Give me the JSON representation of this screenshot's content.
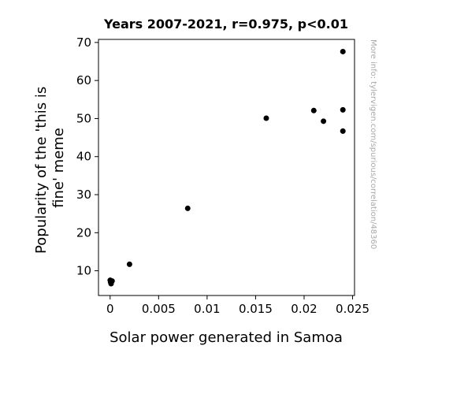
{
  "chart_data": {
    "type": "scatter",
    "title": "Years 2007-2021, r=0.975, p<0.01",
    "xlabel": "Solar power generated in Samoa",
    "ylabel_lines": [
      "Popularity of the 'this is",
      "fine' meme"
    ],
    "side_note": "More info: tylervigen.com/spurious/correlation/48360",
    "xlim": [
      -0.0012,
      0.0252
    ],
    "ylim": [
      3.5,
      70.8
    ],
    "x_ticks": [
      {
        "value": 0,
        "label": "0"
      },
      {
        "value": 0.005,
        "label": "0.005"
      },
      {
        "value": 0.01,
        "label": "0.01"
      },
      {
        "value": 0.015,
        "label": "0.015"
      },
      {
        "value": 0.02,
        "label": "0.02"
      },
      {
        "value": 0.025,
        "label": "0.025"
      }
    ],
    "y_ticks": [
      {
        "value": 10,
        "label": "10"
      },
      {
        "value": 20,
        "label": "20"
      },
      {
        "value": 30,
        "label": "30"
      },
      {
        "value": 40,
        "label": "40"
      },
      {
        "value": 50,
        "label": "50"
      },
      {
        "value": 60,
        "label": "60"
      },
      {
        "value": 70,
        "label": "70"
      }
    ],
    "points": [
      {
        "x": 1e-05,
        "y": 7.5
      },
      {
        "x": 5e-05,
        "y": 7.0
      },
      {
        "x": 0.0001,
        "y": 6.6
      },
      {
        "x": 0.0002,
        "y": 7.3
      },
      {
        "x": 0.002,
        "y": 11.7
      },
      {
        "x": 0.008,
        "y": 26.4
      },
      {
        "x": 0.0161,
        "y": 50.1
      },
      {
        "x": 0.021,
        "y": 52.1
      },
      {
        "x": 0.022,
        "y": 49.3
      },
      {
        "x": 0.024,
        "y": 67.6
      },
      {
        "x": 0.024,
        "y": 52.3
      },
      {
        "x": 0.024,
        "y": 46.7
      }
    ],
    "grid": false,
    "marker_color": "#000000"
  }
}
